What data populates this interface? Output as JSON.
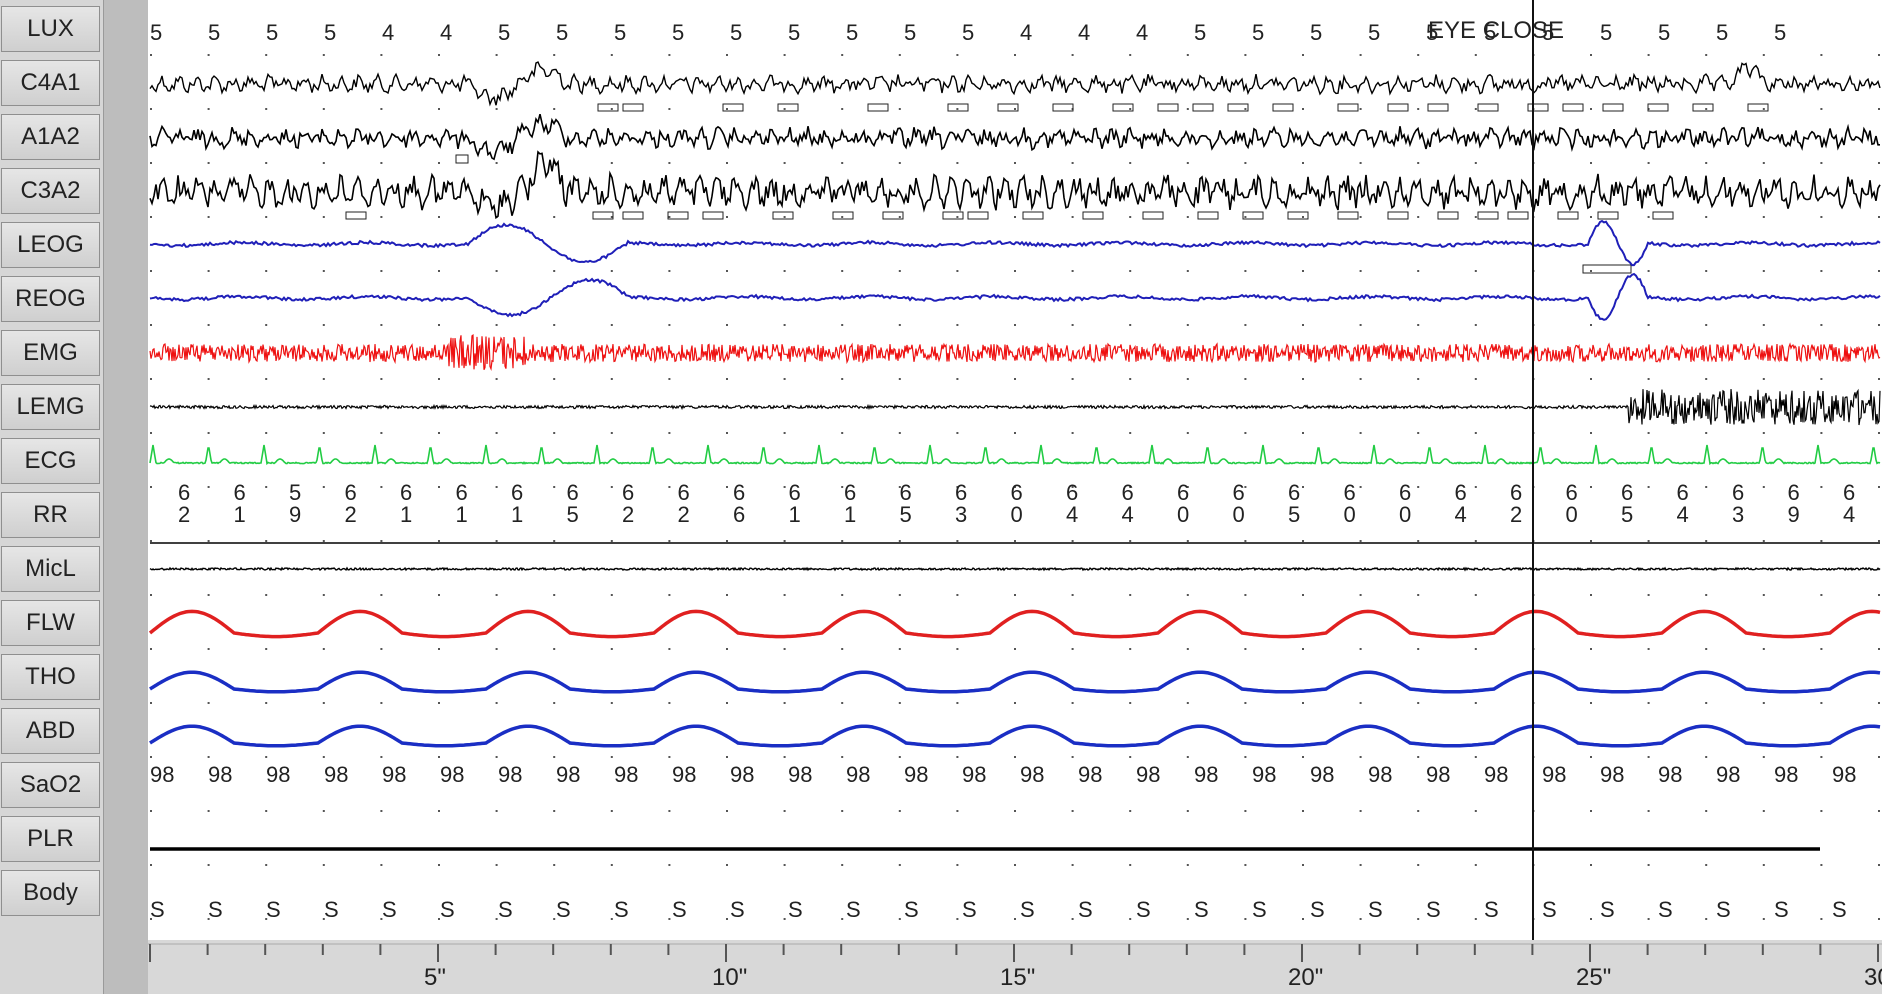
{
  "channels": [
    "LUX",
    "C4A1",
    "A1A2",
    "C3A2",
    "LEOG",
    "REOG",
    "EMG",
    "LEMG",
    "ECG",
    "RR",
    "MicL",
    "FLW",
    "THO",
    "ABD",
    "SaO2",
    "PLR",
    "Body"
  ],
  "annotation": "EYE CLOSE",
  "lux_values": [
    "5",
    "5",
    "5",
    "5",
    "4",
    "4",
    "5",
    "5",
    "5",
    "5",
    "5",
    "5",
    "5",
    "5",
    "5",
    "4",
    "4",
    "4",
    "5",
    "5",
    "5",
    "5",
    "5",
    "5",
    "5",
    "5",
    "5",
    "5",
    "5"
  ],
  "rr_values": [
    [
      "6",
      "2"
    ],
    [
      "6",
      "1"
    ],
    [
      "5",
      "9"
    ],
    [
      "6",
      "2"
    ],
    [
      "6",
      "1"
    ],
    [
      "6",
      "1"
    ],
    [
      "6",
      "1"
    ],
    [
      "6",
      "5"
    ],
    [
      "6",
      "2"
    ],
    [
      "6",
      "2"
    ],
    [
      "6",
      "6"
    ],
    [
      "6",
      "1"
    ],
    [
      "6",
      "1"
    ],
    [
      "6",
      "5"
    ],
    [
      "6",
      "3"
    ],
    [
      "6",
      "0"
    ],
    [
      "6",
      "4"
    ],
    [
      "6",
      "4"
    ],
    [
      "6",
      "0"
    ],
    [
      "6",
      "0"
    ],
    [
      "6",
      "5"
    ],
    [
      "6",
      "0"
    ],
    [
      "6",
      "0"
    ],
    [
      "6",
      "4"
    ],
    [
      "6",
      "2"
    ],
    [
      "6",
      "0"
    ],
    [
      "6",
      "5"
    ],
    [
      "6",
      "4"
    ],
    [
      "6",
      "3"
    ],
    [
      "6",
      "9"
    ],
    [
      "6",
      "4"
    ]
  ],
  "sao2_values": [
    "98",
    "98",
    "98",
    "98",
    "98",
    "98",
    "98",
    "98",
    "98",
    "98",
    "98",
    "98",
    "98",
    "98",
    "98",
    "98",
    "98",
    "98",
    "98",
    "98",
    "98",
    "98",
    "98",
    "98",
    "98",
    "98",
    "98",
    "98",
    "98",
    "98"
  ],
  "body_values": [
    "S",
    "S",
    "S",
    "S",
    "S",
    "S",
    "S",
    "S",
    "S",
    "S",
    "S",
    "S",
    "S",
    "S",
    "S",
    "S",
    "S",
    "S",
    "S",
    "S",
    "S",
    "S",
    "S",
    "S",
    "S",
    "S",
    "S",
    "S",
    "S",
    "S"
  ],
  "time_axis": [
    "5\"",
    "10\"",
    "15\"",
    "20\"",
    "25\"",
    "30\""
  ],
  "colors": {
    "eeg": "#000000",
    "eog": "#1f1fb8",
    "emg": "#ee1111",
    "ecg": "#22cc44",
    "flw": "#e02020",
    "resp": "#1a2ec4",
    "grid": "#555555"
  }
}
